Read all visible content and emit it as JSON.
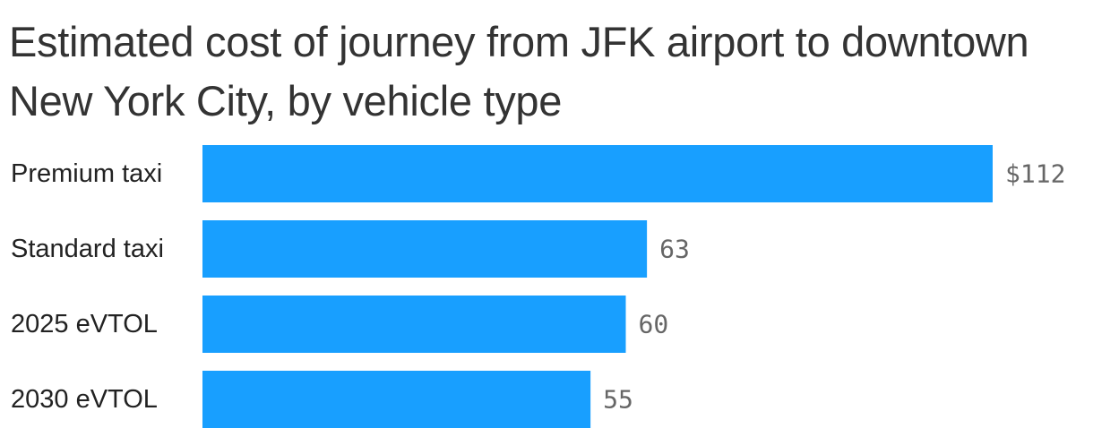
{
  "chart_data": {
    "type": "bar",
    "orientation": "horizontal",
    "title": "Estimated cost of journey from JFK airport to downtown New York City, by vehicle type",
    "categories": [
      "Premium taxi",
      "Standard taxi",
      "2025 eVTOL",
      "2030 eVTOL"
    ],
    "values": [
      112,
      63,
      60,
      55
    ],
    "value_labels": [
      "$112",
      "63",
      "60",
      "55"
    ],
    "xlabel": "",
    "ylabel": "",
    "xlim": [
      0,
      112
    ],
    "grid": false,
    "legend": "none",
    "colors": {
      "bar": "#189fff",
      "value_text": "#666666",
      "label_text": "#222222",
      "title_text": "#333333"
    }
  }
}
